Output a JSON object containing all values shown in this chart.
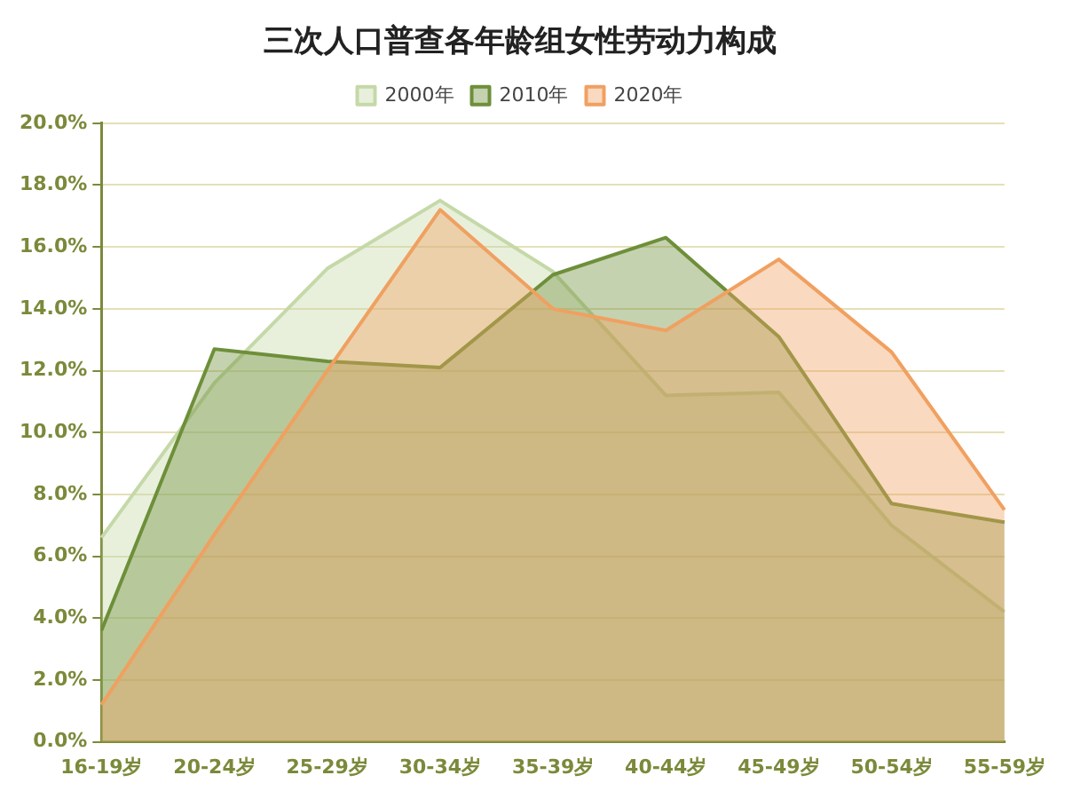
{
  "chart_data": {
    "type": "area",
    "title": "三次人口普查各年龄组女性劳动力构成",
    "categories": [
      "16-19岁",
      "20-24岁",
      "25-29岁",
      "30-34岁",
      "35-39岁",
      "40-44岁",
      "45-49岁",
      "50-54岁",
      "55-59岁"
    ],
    "series": [
      {
        "name": "2000年",
        "color": "#c5d9a8",
        "values": [
          6.6,
          11.6,
          15.3,
          17.5,
          15.2,
          11.2,
          11.3,
          7.0,
          4.2
        ]
      },
      {
        "name": "2010年",
        "color": "#6e8f3a",
        "values": [
          3.6,
          12.7,
          12.3,
          12.1,
          15.1,
          16.3,
          13.1,
          7.7,
          7.1
        ]
      },
      {
        "name": "2020年",
        "color": "#f0a060",
        "values": [
          1.2,
          6.7,
          12.0,
          17.2,
          14.0,
          13.3,
          15.6,
          12.6,
          7.5
        ]
      }
    ],
    "ylim": [
      0,
      20
    ],
    "yticks": [
      {
        "value": 0,
        "label": "0.0%"
      },
      {
        "value": 2,
        "label": "2.0%"
      },
      {
        "value": 4,
        "label": "4.0%"
      },
      {
        "value": 6,
        "label": "6.0%"
      },
      {
        "value": 8,
        "label": "8.0%"
      },
      {
        "value": 10,
        "label": "10.0%"
      },
      {
        "value": 12,
        "label": "12.0%"
      },
      {
        "value": 14,
        "label": "14.0%"
      },
      {
        "value": 16,
        "label": "16.0%"
      },
      {
        "value": 18,
        "label": "18.0%"
      },
      {
        "value": 20,
        "label": "20.0%"
      }
    ],
    "grid": "y",
    "legend": "top",
    "marker": "none",
    "line_style": "solid"
  }
}
